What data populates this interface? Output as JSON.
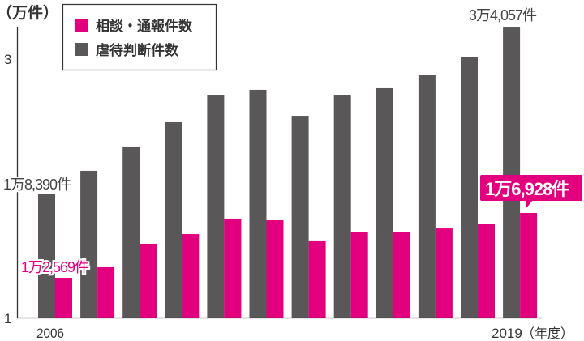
{
  "chart_data": {
    "type": "bar",
    "unit_label": "（万件）",
    "x_unit_label": "（年度）",
    "categories_shown": [
      "2006",
      "2019"
    ],
    "category_count": 12,
    "y_ticks": [
      {
        "value": 1,
        "label": "1"
      },
      {
        "value": 3,
        "label": "3"
      }
    ],
    "ylim": [
      1,
      3.5
    ],
    "legend": {
      "placement": "top-left",
      "entries": [
        "相談・通報件数",
        "虐待判断件数"
      ]
    },
    "series": [
      {
        "name": "相談・通報件数",
        "color": "#E2007F",
        "values": [
          1.2569,
          1.328,
          1.486,
          1.551,
          1.655,
          1.644,
          1.508,
          1.562,
          1.562,
          1.589,
          1.622,
          1.6928
        ]
      },
      {
        "name": "虐待判断件数",
        "color": "#595757",
        "values": [
          1.839,
          2.059,
          2.286,
          2.513,
          2.77,
          2.816,
          2.573,
          2.77,
          2.831,
          2.959,
          3.126,
          3.4057
        ]
      }
    ],
    "annotations": {
      "dark_first": "1万8,390件",
      "dark_last": "3万4,057件",
      "pink_first": "1万2,569件",
      "pink_last": "1万6,928件"
    }
  }
}
